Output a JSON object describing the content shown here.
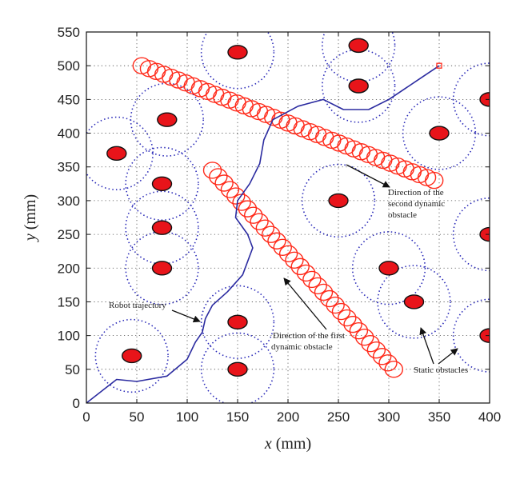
{
  "chart_data": {
    "type": "scatter",
    "xlim": [
      0,
      400
    ],
    "ylim": [
      0,
      550
    ],
    "x_ticks": [
      0,
      50,
      100,
      150,
      200,
      250,
      300,
      350,
      400
    ],
    "y_ticks": [
      0,
      50,
      100,
      150,
      200,
      250,
      300,
      350,
      400,
      450,
      500,
      550
    ],
    "x_tick_labels": [
      "0",
      "50",
      "100",
      "150",
      "200",
      "250",
      "300",
      "350",
      "400"
    ],
    "y_tick_labels": [
      "0",
      "50",
      "100",
      "150",
      "200",
      "250",
      "300",
      "350",
      "400",
      "450",
      "500",
      "550"
    ],
    "xlabel_var": "x",
    "xlabel_unit": " (mm)",
    "ylabel_var": "y",
    "ylabel_unit": " (mm)",
    "grid": true,
    "static_obstacles": [
      [
        150,
        520
      ],
      [
        270,
        530
      ],
      [
        270,
        470
      ],
      [
        400,
        450
      ],
      [
        80,
        420
      ],
      [
        350,
        400
      ],
      [
        30,
        370
      ],
      [
        75,
        325
      ],
      [
        250,
        300
      ],
      [
        75,
        260
      ],
      [
        400,
        250
      ],
      [
        75,
        200
      ],
      [
        300,
        200
      ],
      [
        325,
        150
      ],
      [
        150,
        120
      ],
      [
        400,
        100
      ],
      [
        45,
        70
      ],
      [
        150,
        50
      ]
    ],
    "dynamic_obstacle_1": {
      "start": [
        305,
        50
      ],
      "end": [
        125,
        345
      ],
      "count": 32
    },
    "dynamic_obstacle_2": {
      "start": [
        55,
        500
      ],
      "end": [
        345,
        330
      ],
      "count": 41
    },
    "robot_trajectory": [
      [
        0,
        0
      ],
      [
        30,
        35
      ],
      [
        50,
        32
      ],
      [
        80,
        40
      ],
      [
        100,
        65
      ],
      [
        108,
        90
      ],
      [
        115,
        105
      ],
      [
        118,
        125
      ],
      [
        125,
        145
      ],
      [
        140,
        165
      ],
      [
        155,
        190
      ],
      [
        165,
        230
      ],
      [
        160,
        250
      ],
      [
        148,
        275
      ],
      [
        150,
        300
      ],
      [
        162,
        325
      ],
      [
        172,
        355
      ],
      [
        176,
        390
      ],
      [
        185,
        420
      ],
      [
        210,
        440
      ],
      [
        235,
        450
      ],
      [
        255,
        435
      ],
      [
        280,
        435
      ],
      [
        300,
        450
      ],
      [
        330,
        480
      ],
      [
        350,
        500
      ]
    ],
    "goal": [
      350,
      500
    ],
    "colors": {
      "static_fill": "#e8141a",
      "static_stroke": "#111111",
      "safety_zone": "#2a2ab8",
      "dynamic": "#ff2a1a",
      "trajectory": "#2b2ba0",
      "grid": "#444444"
    },
    "annotations": {
      "robot_trajectory": "Robot trajectory",
      "first_dynamic_line1": "Direction of the first",
      "first_dynamic_line2": "dynamic obstacle",
      "second_dynamic_line1": "Direction of the",
      "second_dynamic_line2": "second dynamic",
      "second_dynamic_line3": "obstacle",
      "static_obstacles": "Static obstacles"
    }
  }
}
